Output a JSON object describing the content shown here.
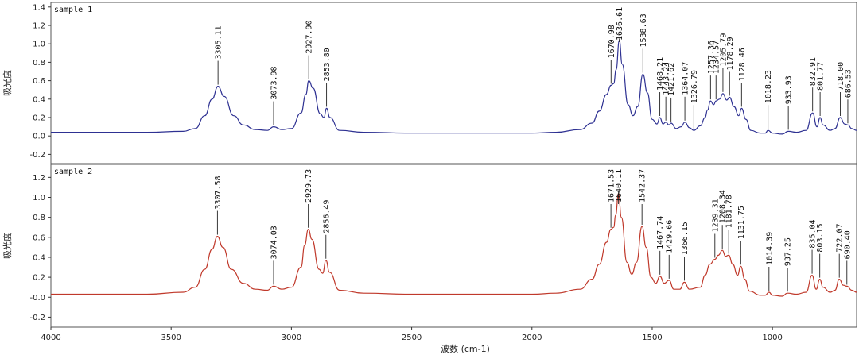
{
  "chart_data": {
    "type": "line",
    "xlabel": "波数 (cm-1)",
    "x_ticks": [
      4000,
      3500,
      3000,
      2500,
      2000,
      1500,
      1000
    ],
    "xlim": [
      4000,
      650
    ],
    "panels": [
      {
        "name": "sample 1",
        "ylabel": "吸光度",
        "ylim": [
          -0.3,
          1.45
        ],
        "y_ticks": [
          -0.2,
          0.0,
          0.2,
          0.4,
          0.6,
          0.8,
          1.0,
          1.2,
          1.4
        ],
        "y_tick_labels": [
          "-0.2",
          "0.0",
          "0.2",
          "0.4",
          "0.6",
          "0.8",
          "1.0",
          "1.2",
          "1.4"
        ],
        "color": "#2e3192",
        "spectrum": [
          [
            4000,
            0.04
          ],
          [
            3800,
            0.04
          ],
          [
            3600,
            0.04
          ],
          [
            3450,
            0.05
          ],
          [
            3400,
            0.08
          ],
          [
            3360,
            0.22
          ],
          [
            3330,
            0.4
          ],
          [
            3305.11,
            0.54
          ],
          [
            3280,
            0.43
          ],
          [
            3240,
            0.22
          ],
          [
            3200,
            0.12
          ],
          [
            3150,
            0.07
          ],
          [
            3100,
            0.06
          ],
          [
            3073.98,
            0.1
          ],
          [
            3040,
            0.07
          ],
          [
            3000,
            0.08
          ],
          [
            2960,
            0.25
          ],
          [
            2940,
            0.45
          ],
          [
            2927.9,
            0.6
          ],
          [
            2910,
            0.52
          ],
          [
            2880,
            0.24
          ],
          [
            2865,
            0.2
          ],
          [
            2853.8,
            0.3
          ],
          [
            2840,
            0.2
          ],
          [
            2800,
            0.06
          ],
          [
            2700,
            0.04
          ],
          [
            2500,
            0.03
          ],
          [
            2200,
            0.03
          ],
          [
            2000,
            0.03
          ],
          [
            1900,
            0.04
          ],
          [
            1800,
            0.07
          ],
          [
            1750,
            0.14
          ],
          [
            1720,
            0.27
          ],
          [
            1690,
            0.45
          ],
          [
            1670.98,
            0.55
          ],
          [
            1660,
            0.57
          ],
          [
            1650,
            0.72
          ],
          [
            1636.61,
            1.04
          ],
          [
            1625,
            0.78
          ],
          [
            1600,
            0.34
          ],
          [
            1580,
            0.22
          ],
          [
            1560,
            0.32
          ],
          [
            1538.63,
            0.67
          ],
          [
            1520,
            0.47
          ],
          [
            1500,
            0.18
          ],
          [
            1480,
            0.13
          ],
          [
            1468.21,
            0.2
          ],
          [
            1455,
            0.13
          ],
          [
            1443.24,
            0.15
          ],
          [
            1430,
            0.12
          ],
          [
            1421.62,
            0.14
          ],
          [
            1400,
            0.08
          ],
          [
            1380,
            0.1
          ],
          [
            1364.07,
            0.15
          ],
          [
            1345,
            0.09
          ],
          [
            1326.79,
            0.06
          ],
          [
            1300,
            0.11
          ],
          [
            1280,
            0.2
          ],
          [
            1270,
            0.28
          ],
          [
            1257.36,
            0.38
          ],
          [
            1245,
            0.34
          ],
          [
            1234.57,
            0.38
          ],
          [
            1220,
            0.4
          ],
          [
            1205.79,
            0.46
          ],
          [
            1190,
            0.39
          ],
          [
            1178.29,
            0.42
          ],
          [
            1160,
            0.32
          ],
          [
            1140,
            0.22
          ],
          [
            1128.46,
            0.3
          ],
          [
            1110,
            0.18
          ],
          [
            1090,
            0.06
          ],
          [
            1050,
            0.03
          ],
          [
            1030,
            0.03
          ],
          [
            1018.23,
            0.06
          ],
          [
            1000,
            0.03
          ],
          [
            960,
            0.02
          ],
          [
            933.93,
            0.05
          ],
          [
            900,
            0.04
          ],
          [
            860,
            0.06
          ],
          [
            832.91,
            0.25
          ],
          [
            815,
            0.1
          ],
          [
            801.77,
            0.2
          ],
          [
            790,
            0.12
          ],
          [
            760,
            0.06
          ],
          [
            740,
            0.08
          ],
          [
            718.0,
            0.2
          ],
          [
            700,
            0.13
          ],
          [
            686.53,
            0.12
          ],
          [
            670,
            0.08
          ],
          [
            650,
            0.06
          ]
        ],
        "peaks": [
          {
            "label": "3305.11",
            "x": 3305.11,
            "y": 0.54
          },
          {
            "label": "3073.98",
            "x": 3073.98,
            "y": 0.1
          },
          {
            "label": "2927.90",
            "x": 2927.9,
            "y": 0.6
          },
          {
            "label": "2853.80",
            "x": 2853.8,
            "y": 0.3
          },
          {
            "label": "1670.98",
            "x": 1670.98,
            "y": 0.55
          },
          {
            "label": "1636.61",
            "x": 1636.61,
            "y": 1.04
          },
          {
            "label": "1538.63",
            "x": 1538.63,
            "y": 0.67
          },
          {
            "label": "1468.21",
            "x": 1468.21,
            "y": 0.2
          },
          {
            "label": "1443.24",
            "x": 1443.24,
            "y": 0.15
          },
          {
            "label": "1421.62",
            "x": 1421.62,
            "y": 0.14
          },
          {
            "label": "1364.07",
            "x": 1364.07,
            "y": 0.15
          },
          {
            "label": "1326.79",
            "x": 1326.79,
            "y": 0.06
          },
          {
            "label": "1257.36",
            "x": 1257.36,
            "y": 0.38
          },
          {
            "label": "1234.57",
            "x": 1234.57,
            "y": 0.38
          },
          {
            "label": "1205.79",
            "x": 1205.79,
            "y": 0.46
          },
          {
            "label": "1178.29",
            "x": 1178.29,
            "y": 0.42
          },
          {
            "label": "1128.46",
            "x": 1128.46,
            "y": 0.3
          },
          {
            "label": "1018.23",
            "x": 1018.23,
            "y": 0.06
          },
          {
            "label": "933.93",
            "x": 933.93,
            "y": 0.05
          },
          {
            "label": "832.91",
            "x": 832.91,
            "y": 0.25
          },
          {
            "label": "801.77",
            "x": 801.77,
            "y": 0.2
          },
          {
            "label": "718.00",
            "x": 718.0,
            "y": 0.2
          },
          {
            "label": "686.53",
            "x": 686.53,
            "y": 0.12
          }
        ]
      },
      {
        "name": "sample 2",
        "ylabel": "吸光度",
        "ylim": [
          -0.3,
          1.33
        ],
        "y_ticks": [
          -0.2,
          0.0,
          0.2,
          0.4,
          0.6,
          0.8,
          1.0,
          1.2
        ],
        "y_tick_labels": [
          "-0.2",
          "-0.0",
          "0.2",
          "0.4",
          "0.6",
          "0.8",
          "1.0",
          "1.2"
        ],
        "color": "#c0392b",
        "spectrum": [
          [
            4000,
            0.03
          ],
          [
            3800,
            0.03
          ],
          [
            3600,
            0.03
          ],
          [
            3450,
            0.05
          ],
          [
            3400,
            0.1
          ],
          [
            3360,
            0.28
          ],
          [
            3330,
            0.48
          ],
          [
            3307.58,
            0.61
          ],
          [
            3285,
            0.5
          ],
          [
            3250,
            0.28
          ],
          [
            3200,
            0.14
          ],
          [
            3150,
            0.08
          ],
          [
            3100,
            0.07
          ],
          [
            3074.03,
            0.11
          ],
          [
            3040,
            0.08
          ],
          [
            3000,
            0.1
          ],
          [
            2960,
            0.3
          ],
          [
            2945,
            0.52
          ],
          [
            2929.73,
            0.68
          ],
          [
            2915,
            0.58
          ],
          [
            2885,
            0.28
          ],
          [
            2870,
            0.24
          ],
          [
            2856.49,
            0.37
          ],
          [
            2842,
            0.25
          ],
          [
            2800,
            0.07
          ],
          [
            2700,
            0.04
          ],
          [
            2500,
            0.03
          ],
          [
            2200,
            0.03
          ],
          [
            2000,
            0.03
          ],
          [
            1900,
            0.04
          ],
          [
            1800,
            0.08
          ],
          [
            1750,
            0.18
          ],
          [
            1720,
            0.33
          ],
          [
            1690,
            0.55
          ],
          [
            1671.53,
            0.68
          ],
          [
            1660,
            0.7
          ],
          [
            1652,
            0.82
          ],
          [
            1640.11,
            1.04
          ],
          [
            1628,
            0.8
          ],
          [
            1605,
            0.35
          ],
          [
            1585,
            0.23
          ],
          [
            1565,
            0.35
          ],
          [
            1542.37,
            0.71
          ],
          [
            1525,
            0.5
          ],
          [
            1505,
            0.2
          ],
          [
            1485,
            0.14
          ],
          [
            1467.74,
            0.21
          ],
          [
            1450,
            0.14
          ],
          [
            1429.66,
            0.17
          ],
          [
            1410,
            0.08
          ],
          [
            1385,
            0.08
          ],
          [
            1366.15,
            0.15
          ],
          [
            1345,
            0.08
          ],
          [
            1300,
            0.1
          ],
          [
            1280,
            0.22
          ],
          [
            1260,
            0.33
          ],
          [
            1239.31,
            0.38
          ],
          [
            1225,
            0.42
          ],
          [
            1208.34,
            0.47
          ],
          [
            1195,
            0.41
          ],
          [
            1181.78,
            0.42
          ],
          [
            1165,
            0.33
          ],
          [
            1145,
            0.22
          ],
          [
            1131.75,
            0.31
          ],
          [
            1115,
            0.18
          ],
          [
            1095,
            0.06
          ],
          [
            1050,
            0.02
          ],
          [
            1030,
            0.02
          ],
          [
            1014.39,
            0.05
          ],
          [
            1000,
            0.02
          ],
          [
            960,
            0.01
          ],
          [
            937.25,
            0.04
          ],
          [
            900,
            0.03
          ],
          [
            860,
            0.05
          ],
          [
            835.04,
            0.22
          ],
          [
            818,
            0.08
          ],
          [
            803.15,
            0.18
          ],
          [
            790,
            0.1
          ],
          [
            760,
            0.05
          ],
          [
            740,
            0.07
          ],
          [
            722.07,
            0.18
          ],
          [
            705,
            0.12
          ],
          [
            690.4,
            0.11
          ],
          [
            670,
            0.07
          ],
          [
            650,
            0.05
          ]
        ],
        "peaks": [
          {
            "label": "3307.58",
            "x": 3307.58,
            "y": 0.61
          },
          {
            "label": "3074.03",
            "x": 3074.03,
            "y": 0.11
          },
          {
            "label": "2929.73",
            "x": 2929.73,
            "y": 0.68
          },
          {
            "label": "2856.49",
            "x": 2856.49,
            "y": 0.37
          },
          {
            "label": "1671.53",
            "x": 1671.53,
            "y": 0.68
          },
          {
            "label": "1640.11",
            "x": 1640.11,
            "y": 1.04
          },
          {
            "label": "1542.37",
            "x": 1542.37,
            "y": 0.71
          },
          {
            "label": "1467.74",
            "x": 1467.74,
            "y": 0.21
          },
          {
            "label": "1429.66",
            "x": 1429.66,
            "y": 0.17
          },
          {
            "label": "1366.15",
            "x": 1366.15,
            "y": 0.15
          },
          {
            "label": "1239.31",
            "x": 1239.31,
            "y": 0.38
          },
          {
            "label": "1208.34",
            "x": 1208.34,
            "y": 0.47
          },
          {
            "label": "1181.78",
            "x": 1181.78,
            "y": 0.42
          },
          {
            "label": "1131.75",
            "x": 1131.75,
            "y": 0.31
          },
          {
            "label": "1014.39",
            "x": 1014.39,
            "y": 0.05
          },
          {
            "label": "937.25",
            "x": 937.25,
            "y": 0.04
          },
          {
            "label": "835.04",
            "x": 835.04,
            "y": 0.22
          },
          {
            "label": "803.15",
            "x": 803.15,
            "y": 0.18
          },
          {
            "label": "722.07",
            "x": 722.07,
            "y": 0.18
          },
          {
            "label": "690.40",
            "x": 690.4,
            "y": 0.11
          }
        ]
      }
    ]
  }
}
